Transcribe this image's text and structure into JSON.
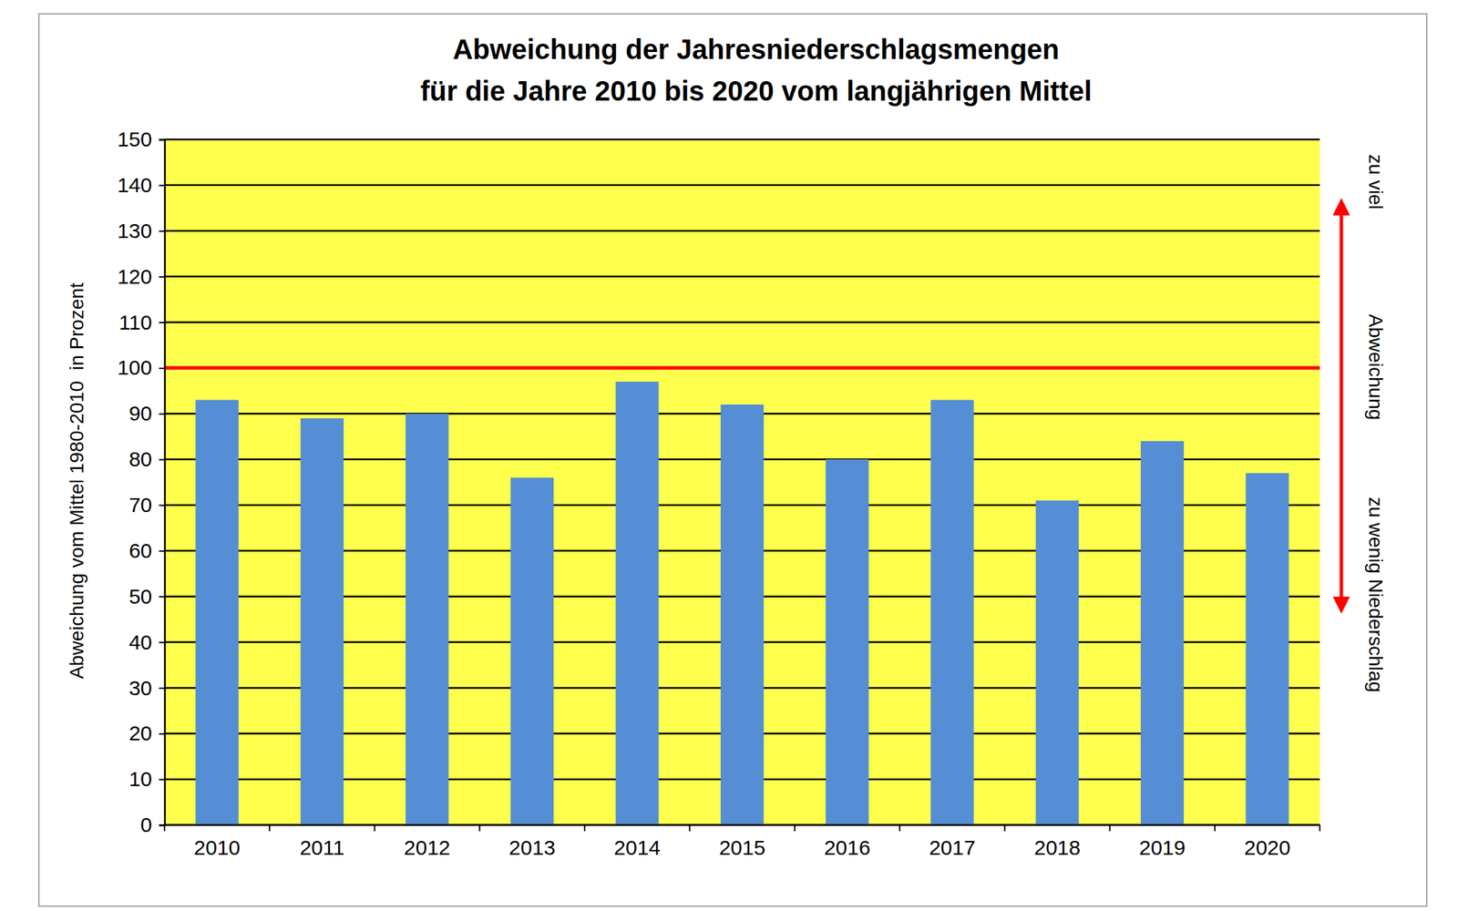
{
  "chart_data": {
    "type": "bar",
    "title": "Abweichung der Jahresniederschlagsmengen\nfür die Jahre 2010 bis 2020 vom langjährigen Mittel",
    "y_label": "Abweichung vom Mittel 1980-2010  in Prozent",
    "categories": [
      "2010",
      "2011",
      "2012",
      "2013",
      "2014",
      "2015",
      "2016",
      "2017",
      "2018",
      "2019",
      "2020"
    ],
    "values": [
      93,
      89,
      90,
      76,
      97,
      92,
      80,
      93,
      71,
      84,
      77
    ],
    "color": "#558ed5",
    "ylim": [
      0,
      150
    ],
    "yticks": [
      0,
      10,
      20,
      30,
      40,
      50,
      60,
      70,
      80,
      90,
      100,
      110,
      120,
      130,
      140,
      150
    ],
    "grid": true,
    "reference_line": 100,
    "annotations": [
      "zu viel",
      "Abweichung",
      "zu wenig Niederschlag"
    ]
  }
}
